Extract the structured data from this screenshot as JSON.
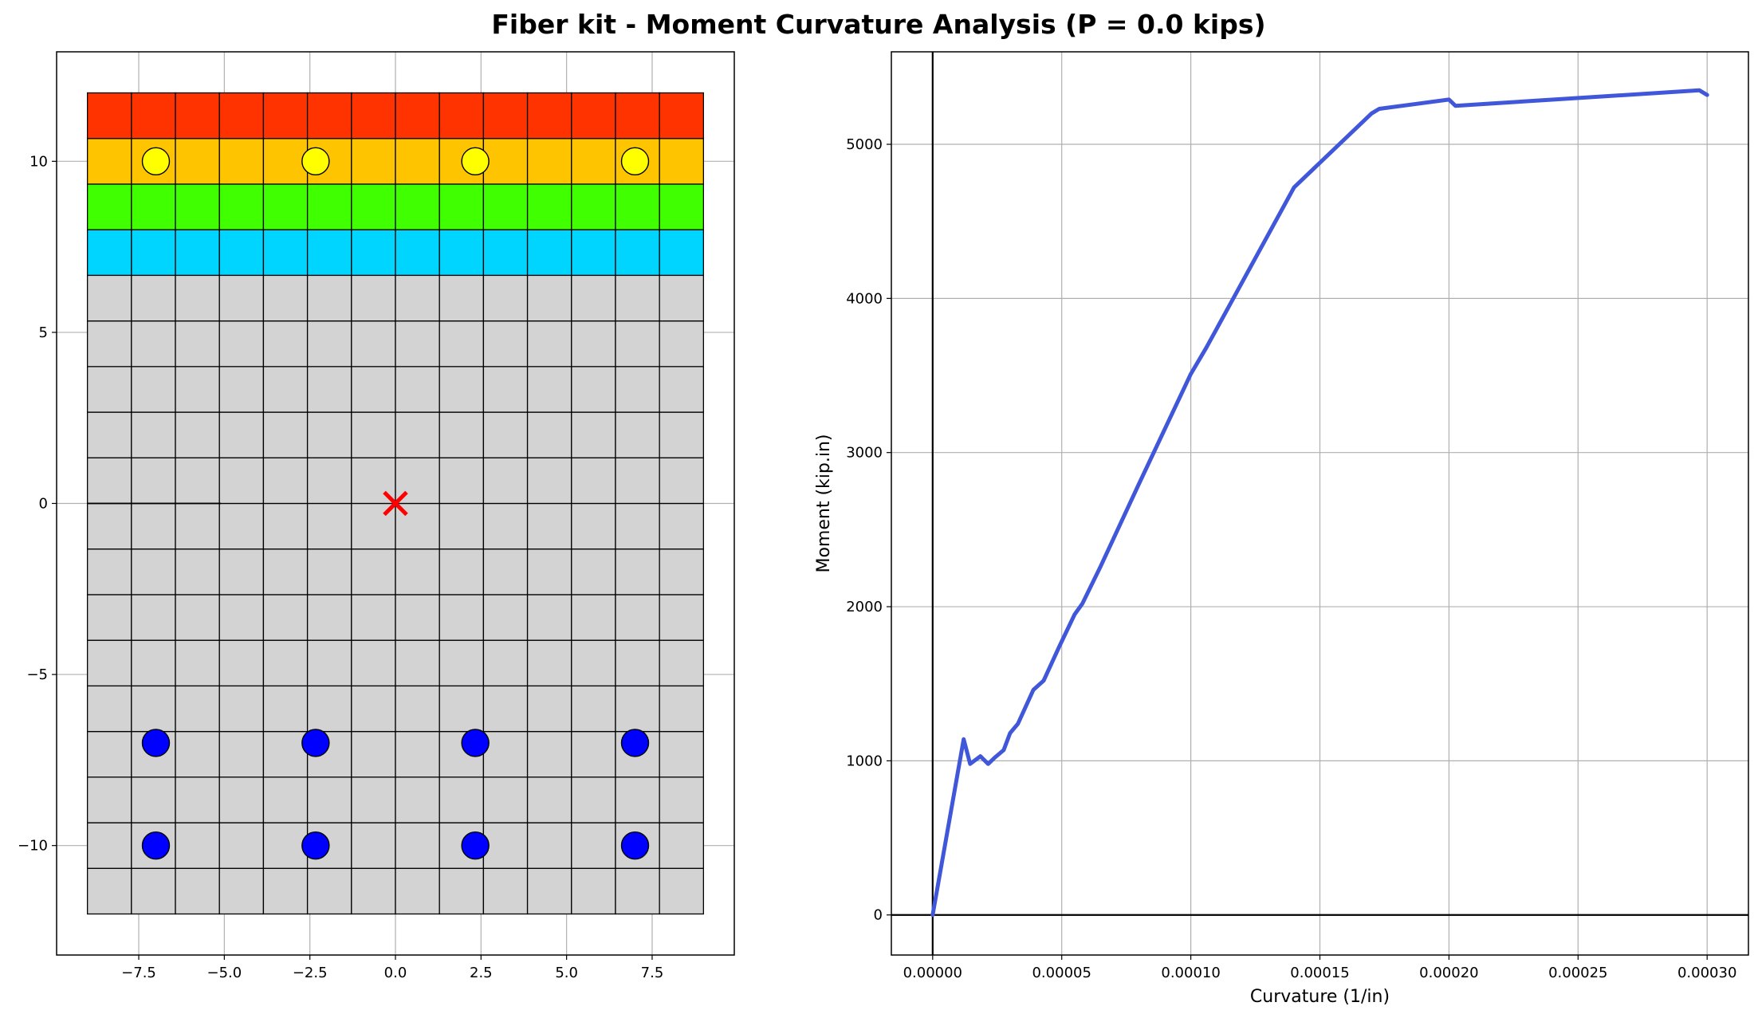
{
  "figure_title": "Fiber kit - Moment Curvature Analysis (P = 0.0 kips)",
  "chart_data": [
    {
      "type": "scatter",
      "title": "",
      "xlabel": "",
      "ylabel": "",
      "xlim": [
        -9.9,
        9.9
      ],
      "ylim": [
        -13.2,
        13.2
      ],
      "grid": true,
      "x_ticks": [
        -7.5,
        -5.0,
        -2.5,
        0.0,
        2.5,
        5.0,
        7.5
      ],
      "x_tick_labels": [
        "−7.5",
        "−5.0",
        "−2.5",
        "0.0",
        "2.5",
        "5.0",
        "7.5"
      ],
      "y_ticks": [
        10,
        5,
        0,
        -5,
        -10
      ],
      "y_tick_labels": [
        "10",
        "5",
        "0",
        "−5",
        "−10"
      ],
      "section": {
        "x_range": [
          -9,
          9
        ],
        "y_range": [
          -12,
          12
        ],
        "columns": 14,
        "rows": 18
      },
      "layers": [
        {
          "name": "",
          "y_from": 10.667,
          "y_to": 12.0,
          "color": "#ff3300"
        },
        {
          "name": "",
          "y_from": 9.333,
          "y_to": 10.667,
          "color": "#ffc400"
        },
        {
          "name": "",
          "y_from": 8.0,
          "y_to": 9.333,
          "color": "#40ff00"
        },
        {
          "name": "",
          "y_from": 6.667,
          "y_to": 8.0,
          "color": "#00d5ff"
        },
        {
          "name": "",
          "y_from": -12.0,
          "y_to": 6.667,
          "color": "#d3d3d3"
        }
      ],
      "rebar_series": [
        {
          "color": "#ffff00",
          "points": [
            [
              -7,
              10
            ],
            [
              -2.333,
              10
            ],
            [
              2.333,
              10
            ],
            [
              7,
              10
            ]
          ]
        },
        {
          "color": "#0000ff",
          "points": [
            [
              -7,
              -7
            ],
            [
              -2.333,
              -7
            ],
            [
              2.333,
              -7
            ],
            [
              7,
              -7
            ],
            [
              -7,
              -10
            ],
            [
              -2.333,
              -10
            ],
            [
              2.333,
              -10
            ],
            [
              7,
              -10
            ]
          ]
        }
      ],
      "neutral_axis_segment": [
        [
          -9,
          0
        ],
        [
          -5.1,
          0
        ]
      ],
      "centroid": {
        "x": 0,
        "y": 0,
        "marker": "x",
        "color": "#ff0000"
      }
    },
    {
      "type": "line",
      "title": "",
      "xlabel": "Curvature (1/in)",
      "ylabel": "Moment (kip.in)",
      "xlim": [
        -1.6e-05,
        0.000316
      ],
      "ylim": [
        -260,
        5600
      ],
      "grid": true,
      "x_ticks": [
        0.0,
        5e-05,
        0.0001,
        0.00015,
        0.0002,
        0.00025,
        0.0003
      ],
      "x_tick_labels": [
        "0.00000",
        "0.00005",
        "0.00010",
        "0.00015",
        "0.00020",
        "0.00025",
        "0.00030"
      ],
      "y_ticks": [
        0,
        1000,
        2000,
        3000,
        4000,
        5000
      ],
      "y_tick_labels": [
        "0",
        "1000",
        "2000",
        "3000",
        "4000",
        "5000"
      ],
      "reference_lines": {
        "x": 0,
        "y": 0
      },
      "series": [
        {
          "color": "#4157d9",
          "x": [
            0.0,
            1.2e-05,
            1.45e-05,
            1.85e-05,
            2.15e-05,
            2.4e-05,
            2.75e-05,
            3e-05,
            3.3e-05,
            3.9e-05,
            4.3e-05,
            4.9e-05,
            5.5e-05,
            5.8e-05,
            6.5e-05,
            8e-05,
            0.0001,
            0.000106,
            0.00014,
            0.00017,
            0.000173,
            0.0002,
            0.0002025,
            0.000297,
            0.0003
          ],
          "y": [
            0,
            1140,
            980,
            1030,
            980,
            1020,
            1070,
            1180,
            1240,
            1460,
            1520,
            1740,
            1950,
            2020,
            2260,
            2800,
            3510,
            3680,
            4720,
            5200,
            5230,
            5290,
            5250,
            5350,
            5320
          ]
        }
      ]
    }
  ]
}
